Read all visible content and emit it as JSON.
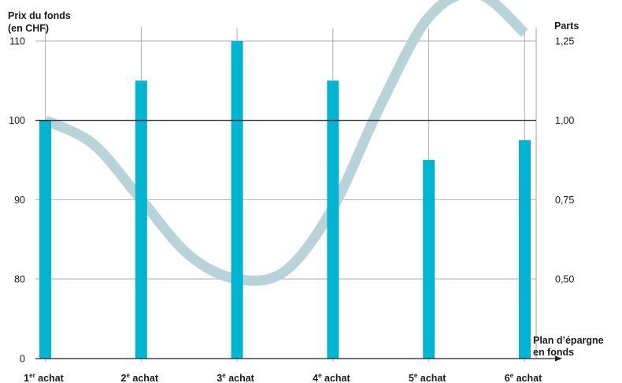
{
  "chart_data": {
    "type": "bar",
    "left_axis_title": [
      "Prix du fonds",
      "(en CHF)"
    ],
    "right_axis_title": "Parts",
    "x_axis_title": [
      "Plan d’épargne",
      "en fonds"
    ],
    "categories": [
      {
        "num": "1",
        "sup": "er",
        "word": "achat"
      },
      {
        "num": "2",
        "sup": "e",
        "word": "achat"
      },
      {
        "num": "3",
        "sup": "e",
        "word": "achat"
      },
      {
        "num": "4",
        "sup": "e",
        "word": "achat"
      },
      {
        "num": "5",
        "sup": "e",
        "word": "achat"
      },
      {
        "num": "6",
        "sup": "e",
        "word": "achat"
      }
    ],
    "values": [
      100,
      105,
      110,
      105,
      95,
      97.5
    ],
    "left_ticks": [
      {
        "value": 110,
        "label": "110"
      },
      {
        "value": 100,
        "label": "100"
      },
      {
        "value": 90,
        "label": "90"
      },
      {
        "value": 80,
        "label": "80"
      },
      {
        "value": 0,
        "label": "0"
      }
    ],
    "right_ticks": [
      "1,25",
      "1,00",
      "0,75",
      "0,50"
    ],
    "reference_value": 100,
    "price_curve": {
      "x": [
        0,
        0.5,
        1,
        1.5,
        2,
        2.5,
        3,
        3.5,
        4,
        4.5,
        5
      ],
      "y": [
        100,
        97,
        90,
        83,
        80,
        81,
        89,
        102,
        113,
        116,
        111
      ]
    },
    "colors": {
      "bars": "#00b4d2",
      "curve": "#b8d4d8",
      "grid": "#909090",
      "axis": "#222222",
      "reference_line": "#222222"
    }
  }
}
